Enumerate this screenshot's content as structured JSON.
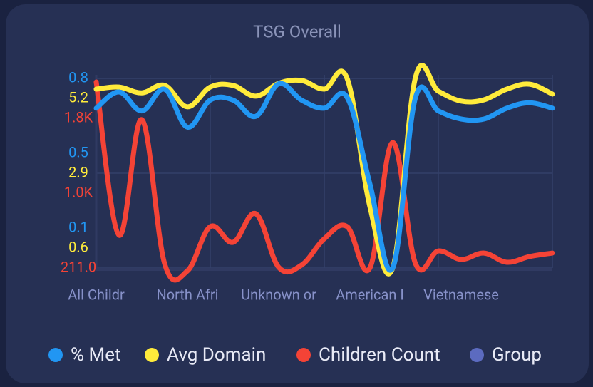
{
  "chart_data": {
    "type": "line",
    "title": "TSG Overall",
    "categories": [
      "All Childr",
      null,
      null,
      null,
      "North Afri",
      null,
      null,
      null,
      "Unknown or",
      null,
      null,
      null,
      "American I",
      null,
      null,
      null,
      "Vietnamese",
      null,
      null,
      null,
      null
    ],
    "series": [
      {
        "name": "% Met",
        "color": "#2196f3",
        "axis": "y",
        "values": [
          0.69,
          0.75,
          0.68,
          0.76,
          0.62,
          0.72,
          0.72,
          0.66,
          0.78,
          0.72,
          0.69,
          0.73,
          0.41,
          0.1,
          0.73,
          0.68,
          0.65,
          0.65,
          0.69,
          0.71,
          0.69
        ]
      },
      {
        "name": "Avg Domain",
        "color": "#ffeb3b",
        "axis": "y2",
        "values": [
          4.94,
          4.99,
          4.85,
          5.03,
          4.51,
          4.99,
          5.03,
          4.77,
          5.08,
          5.15,
          4.94,
          5.2,
          2.09,
          0.6,
          5.23,
          4.89,
          4.65,
          4.68,
          4.94,
          5.06,
          4.82
        ]
      },
      {
        "name": "Children Count",
        "color": "#f44336",
        "axis": "y3",
        "values": [
          1770,
          486,
          1454,
          247,
          187,
          558,
          426,
          665,
          217,
          235,
          456,
          558,
          211,
          1262,
          247,
          354,
          283,
          336,
          259,
          307,
          336
        ]
      },
      {
        "name": "Group",
        "color": "#5c6bc0",
        "axis": "y",
        "values": [
          null,
          null,
          null,
          null,
          null,
          null,
          null,
          null,
          null,
          null,
          null,
          null,
          null,
          null,
          null,
          null,
          null,
          null,
          null,
          null,
          null
        ]
      }
    ],
    "ylim": [
      0.1,
      0.8
    ],
    "yticks": [
      {
        "value": 0.8,
        "label": "0.8"
      },
      {
        "value": 0.45,
        "label": "0.5"
      },
      {
        "value": 0.1,
        "label": "0.1"
      }
    ],
    "y2lim": [
      0.6,
      5.2
    ],
    "y2ticks": [
      5.2,
      2.9,
      0.6
    ],
    "y3lim": [
      211,
      1800
    ],
    "y3ticks": [
      {
        "value": 1800,
        "label": "1.8K"
      },
      {
        "value": 1005.5,
        "label": "1.0K"
      },
      {
        "value": 211,
        "label": "211.0"
      }
    ],
    "grid": true
  }
}
